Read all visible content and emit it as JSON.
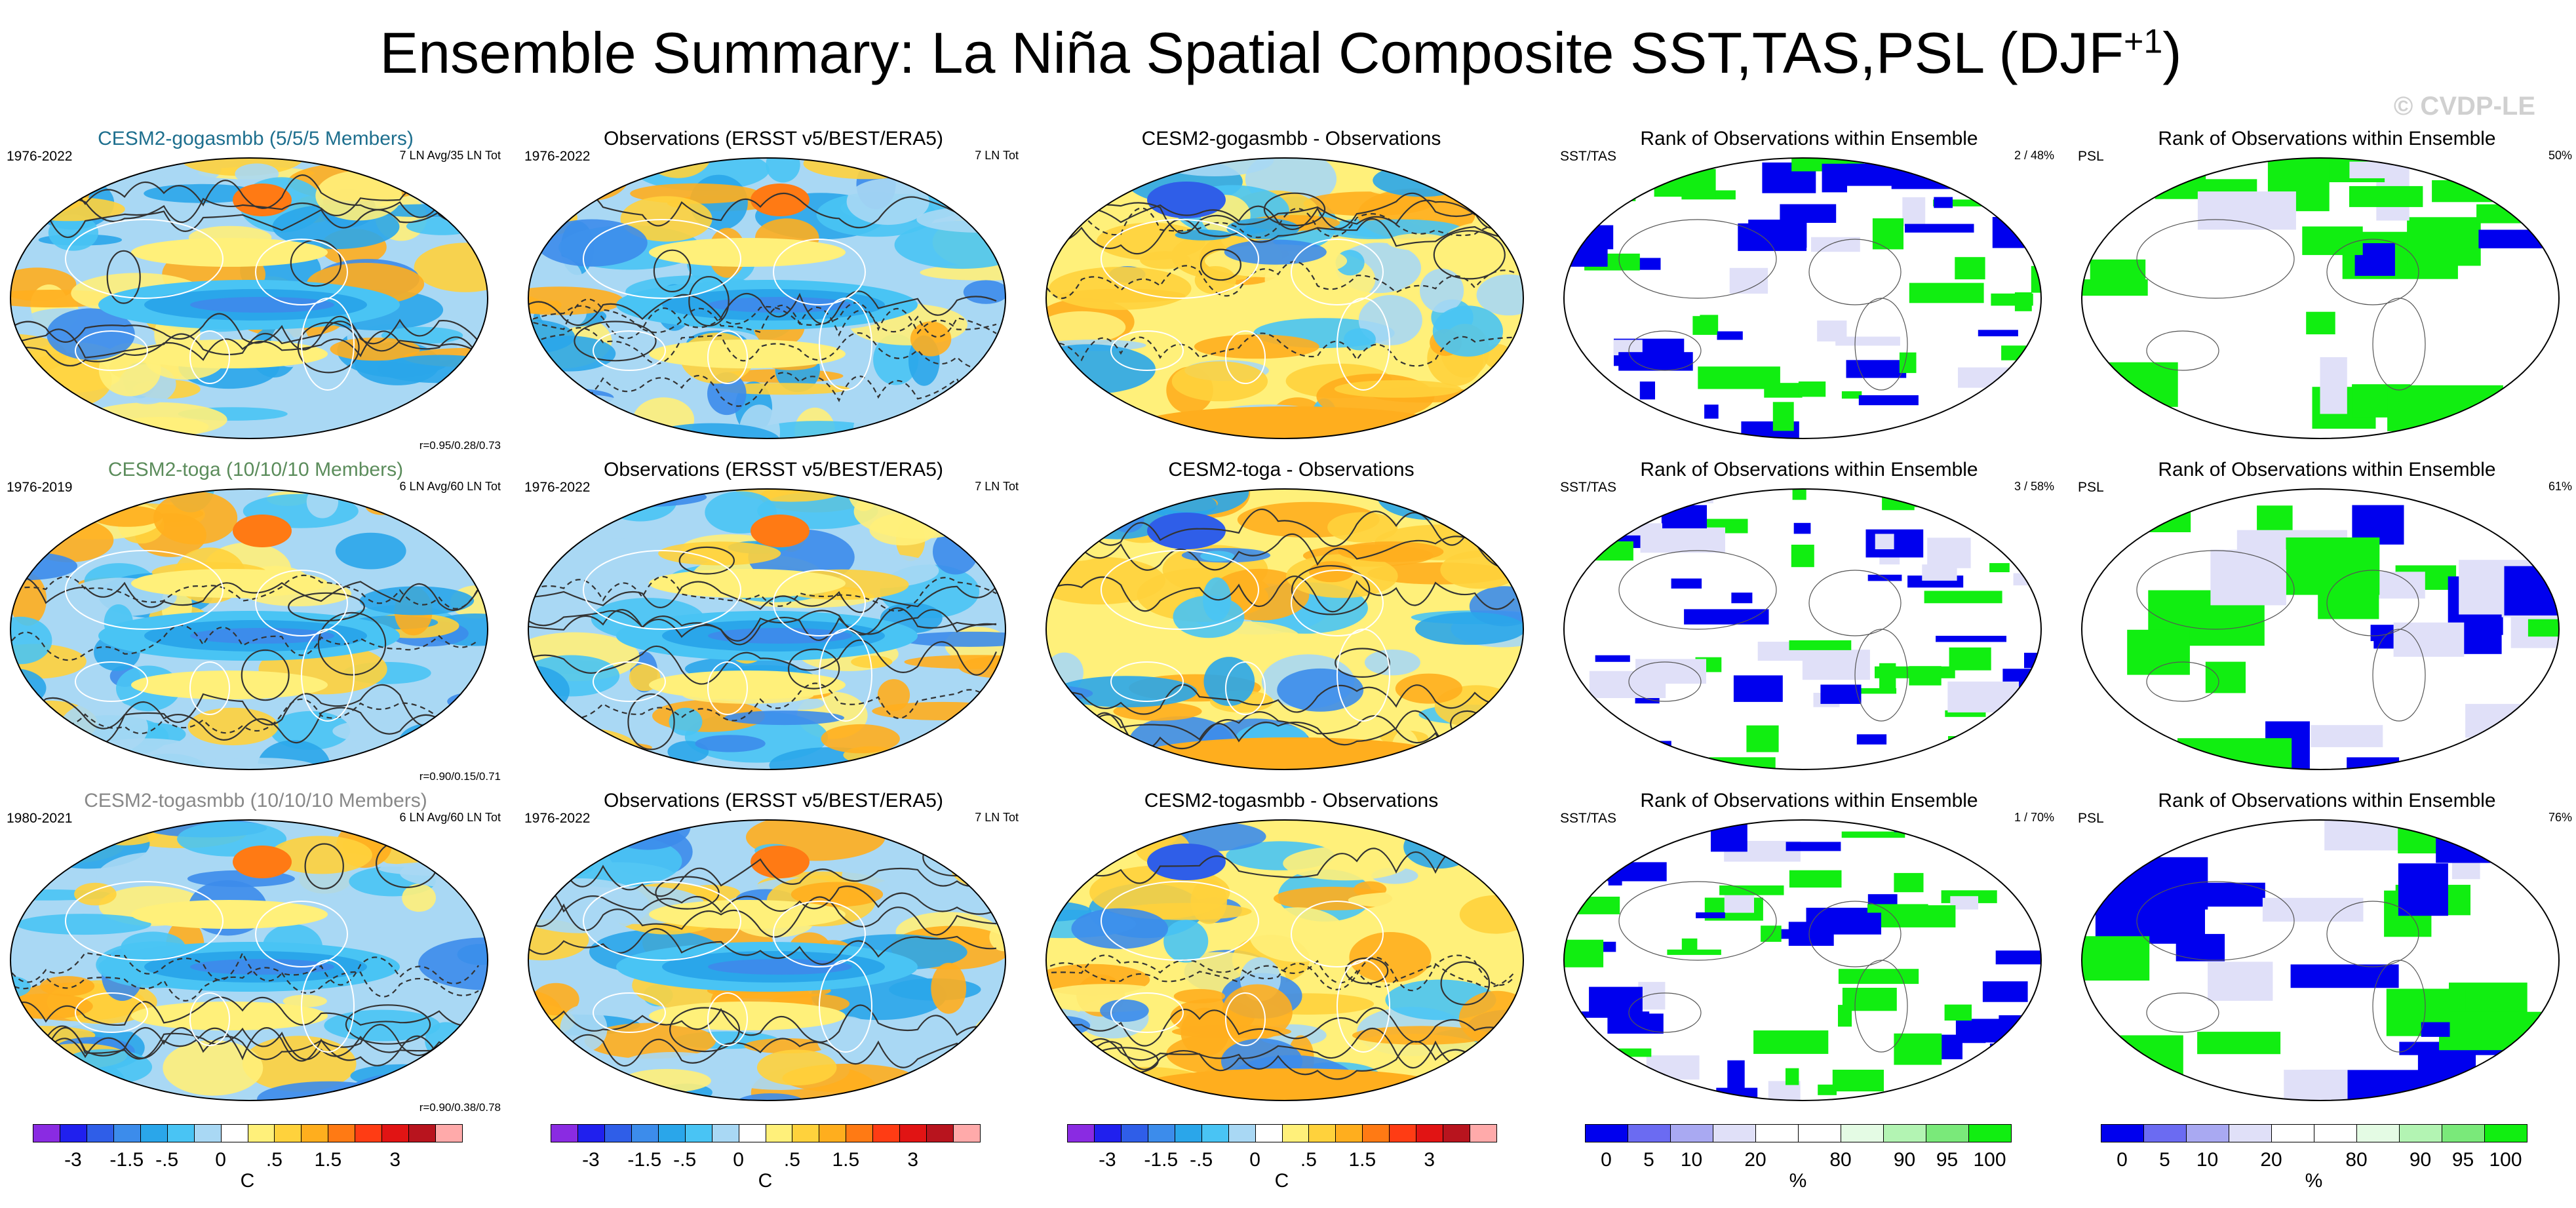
{
  "figure": {
    "title": "Ensemble Summary: La Niña Spatial Composite SST,TAS,PSL (DJF",
    "title_sup": "+1",
    "title_close": ")",
    "watermark": "© CVDP-LE"
  },
  "rows": [
    {
      "model": {
        "title": "CESM2-gogasmbb (5/5/5 Members)",
        "period": "1976-2022",
        "info": "7 LN Avg/35 LN Tot",
        "corr": "r=0.95/0.28/0.73"
      },
      "obs": {
        "title": "Observations (ERSST v5/BEST/ERA5)",
        "period": "1976-2022",
        "info": "7 LN Tot"
      },
      "diff": {
        "title": "CESM2-gogasmbb - Observations"
      },
      "rank_sst": {
        "title": "Rank of Observations within Ensemble",
        "label": "SST/TAS",
        "pct": "2 /  48%"
      },
      "rank_psl": {
        "title": "Rank of Observations within Ensemble",
        "label": "PSL",
        "pct": "50%"
      }
    },
    {
      "model": {
        "title": "CESM2-toga (10/10/10 Members)",
        "period": "1976-2019",
        "info": "6 LN Avg/60 LN Tot",
        "corr": "r=0.90/0.15/0.71"
      },
      "obs": {
        "title": "Observations (ERSST v5/BEST/ERA5)",
        "period": "1976-2022",
        "info": "7 LN Tot"
      },
      "diff": {
        "title": "CESM2-toga - Observations"
      },
      "rank_sst": {
        "title": "Rank of Observations within Ensemble",
        "label": "SST/TAS",
        "pct": "3 /  58%"
      },
      "rank_psl": {
        "title": "Rank of Observations within Ensemble",
        "label": "PSL",
        "pct": "61%"
      }
    },
    {
      "model": {
        "title": "CESM2-togasmbb (10/10/10 Members)",
        "period": "1980-2021",
        "info": "6 LN Avg/60 LN Tot",
        "corr": "r=0.90/0.38/0.78"
      },
      "obs": {
        "title": "Observations (ERSST v5/BEST/ERA5)",
        "period": "1976-2022",
        "info": "7 LN Tot"
      },
      "diff": {
        "title": "CESM2-togasmbb - Observations"
      },
      "rank_sst": {
        "title": "Rank of Observations within Ensemble",
        "label": "SST/TAS",
        "pct": "1 /  70%"
      },
      "rank_psl": {
        "title": "Rank of Observations within Ensemble",
        "label": "PSL",
        "pct": "76%"
      }
    }
  ],
  "colorbars": {
    "temp": {
      "colors": [
        "#8a2be2",
        "#2020ee",
        "#2f5ee8",
        "#3c8ceb",
        "#2aa6ea",
        "#49c4f4",
        "#a9d8f4",
        "#ffffff",
        "#fff07a",
        "#ffd23c",
        "#ffae1e",
        "#ff7a14",
        "#ff3c14",
        "#e11414",
        "#b8141e",
        "#ffaaaa"
      ],
      "labels": [
        "-3",
        "-1.5",
        "-.5",
        "0",
        ".5",
        "1.5",
        "3"
      ],
      "unit": "C"
    },
    "rank": {
      "colors": [
        "#0000ee",
        "#6b6bf2",
        "#a9a9f2",
        "#e0e0f8",
        "#ffffff",
        "#ffffff",
        "#e4fbe4",
        "#b3f4b3",
        "#7ae97a",
        "#11ee11"
      ],
      "labels": [
        "0",
        "5",
        "10",
        "20",
        "80",
        "90",
        "95",
        "100"
      ],
      "unit": "%"
    }
  }
}
